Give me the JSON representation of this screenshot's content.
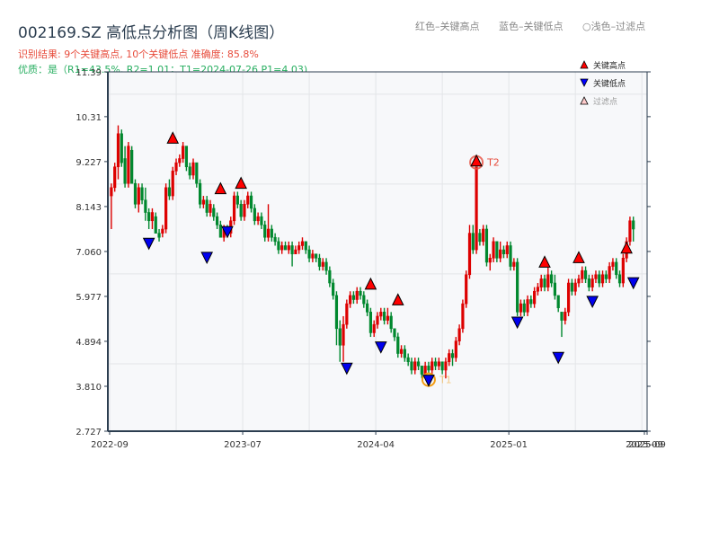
{
  "header": {
    "title": "002169.SZ 高低点分析图（周K线图）",
    "result_line": "识别结果: 9个关键高点, 10个关键低点   准确度: 85.8%",
    "quality_line": "优质：是（R1=43.5%, R2=1.01；T1=2024-07-26 P1=4.03)",
    "color_legend": [
      "红色–关键高点",
      "蓝色–关键低点",
      "○浅色–过滤点"
    ]
  },
  "legend": {
    "items": [
      {
        "label": "关键高点",
        "marker": "triangle-up",
        "color": "#ff0000"
      },
      {
        "label": "关键低点",
        "marker": "triangle-down",
        "color": "#0000ff"
      },
      {
        "label": "过滤点",
        "marker": "triangle-up-outline",
        "color": "#ffcccc"
      }
    ]
  },
  "colors": {
    "up": "#dd0000",
    "down": "#00882e",
    "high_marker": "#ff0000",
    "low_marker": "#0000ee",
    "t1_ring": "#f39c12",
    "t2_ring": "#e74c3c",
    "plot_bg": "#f7f8fa",
    "grid": "#e3e5e8",
    "axis": "#2c3e50"
  },
  "chart_data": {
    "type": "candlestick",
    "title": "002169.SZ 高低点分析图（周K线图）",
    "xlabel": "",
    "ylabel": "",
    "ylim": [
      2.727,
      11.39
    ],
    "yticks": [
      2.727,
      3.81,
      4.894,
      5.977,
      7.06,
      8.143,
      9.227,
      10.31,
      11.39
    ],
    "ytick_labels": [
      "2.727",
      "3.810",
      "4.894",
      "5.977",
      "7.060",
      "8.143",
      "9.227",
      "10.31",
      "11.39"
    ],
    "xticks": [
      {
        "label": "2022-09",
        "week": 0
      },
      {
        "label": "2023-07",
        "week": 39
      },
      {
        "label": "2024-04",
        "week": 78
      },
      {
        "label": "2025-01",
        "week": 117
      },
      {
        "label": "2025-09",
        "week": 156
      },
      {
        "label": "2025-09",
        "week": 157
      }
    ],
    "grid": true,
    "candles": [
      [
        8.4,
        8.6,
        7.6,
        8.7
      ],
      [
        8.6,
        9.1,
        8.5,
        9.2
      ],
      [
        9.1,
        9.9,
        8.8,
        10.1
      ],
      [
        9.9,
        9.2,
        9.1,
        10.0
      ],
      [
        9.3,
        8.7,
        8.6,
        9.6
      ],
      [
        8.7,
        9.6,
        8.6,
        9.7
      ],
      [
        9.5,
        8.7,
        8.7,
        9.6
      ],
      [
        8.7,
        8.2,
        8.1,
        8.8
      ],
      [
        8.2,
        8.6,
        8.0,
        8.7
      ],
      [
        8.6,
        8.3,
        8.2,
        8.7
      ],
      [
        8.3,
        8.0,
        7.8,
        8.6
      ],
      [
        8.0,
        7.8,
        7.6,
        8.1
      ],
      [
        7.8,
        8.0,
        7.6,
        8.1
      ],
      [
        7.9,
        7.5,
        7.5,
        8.0
      ],
      [
        7.5,
        7.4,
        7.3,
        7.6
      ],
      [
        7.5,
        7.6,
        7.4,
        7.7
      ],
      [
        7.6,
        8.6,
        7.5,
        8.7
      ],
      [
        8.6,
        8.4,
        8.3,
        8.8
      ],
      [
        8.4,
        9.0,
        8.3,
        9.1
      ],
      [
        9.0,
        9.2,
        8.9,
        9.3
      ],
      [
        9.2,
        9.3,
        9.1,
        9.4
      ],
      [
        9.3,
        9.6,
        9.2,
        9.7
      ],
      [
        9.6,
        9.1,
        9.0,
        9.6
      ],
      [
        9.1,
        8.9,
        8.8,
        9.2
      ],
      [
        8.9,
        9.2,
        8.8,
        9.3
      ],
      [
        9.2,
        8.7,
        8.6,
        9.2
      ],
      [
        8.7,
        8.2,
        8.1,
        8.8
      ],
      [
        8.2,
        8.3,
        8.1,
        8.4
      ],
      [
        8.3,
        8.0,
        7.9,
        8.4
      ],
      [
        8.0,
        8.2,
        7.9,
        8.3
      ],
      [
        8.1,
        7.9,
        7.8,
        8.2
      ],
      [
        7.9,
        7.7,
        7.6,
        8.0
      ],
      [
        7.7,
        7.4,
        7.4,
        7.8
      ],
      [
        7.4,
        7.6,
        7.3,
        7.7
      ],
      [
        7.6,
        7.5,
        7.5,
        7.7
      ],
      [
        7.5,
        7.8,
        7.4,
        7.9
      ],
      [
        7.8,
        8.4,
        7.7,
        8.5
      ],
      [
        8.4,
        8.2,
        8.1,
        8.5
      ],
      [
        8.2,
        7.9,
        7.8,
        8.3
      ],
      [
        7.9,
        8.2,
        7.8,
        8.3
      ],
      [
        8.2,
        8.4,
        8.1,
        8.5
      ],
      [
        8.4,
        8.1,
        8.0,
        8.5
      ],
      [
        8.1,
        7.8,
        7.7,
        8.2
      ],
      [
        7.8,
        7.9,
        7.7,
        8.0
      ],
      [
        7.9,
        7.7,
        7.6,
        8.0
      ],
      [
        7.7,
        7.4,
        7.3,
        7.8
      ],
      [
        7.4,
        7.6,
        7.3,
        8.2
      ],
      [
        7.6,
        7.4,
        7.3,
        7.7
      ],
      [
        7.4,
        7.3,
        7.2,
        7.5
      ],
      [
        7.3,
        7.1,
        7.0,
        7.4
      ],
      [
        7.1,
        7.2,
        7.0,
        7.3
      ],
      [
        7.2,
        7.1,
        7.1,
        7.3
      ],
      [
        7.1,
        7.2,
        7.0,
        7.3
      ],
      [
        7.2,
        7.0,
        6.7,
        7.3
      ],
      [
        7.0,
        7.1,
        7.0,
        7.2
      ],
      [
        7.1,
        7.2,
        7.0,
        7.3
      ],
      [
        7.2,
        7.3,
        7.1,
        7.4
      ],
      [
        7.3,
        7.1,
        7.0,
        7.3
      ],
      [
        7.1,
        6.9,
        6.8,
        7.2
      ],
      [
        6.9,
        7.0,
        6.8,
        7.1
      ],
      [
        7.0,
        6.9,
        6.8,
        7.0
      ],
      [
        6.9,
        6.7,
        6.6,
        7.0
      ],
      [
        6.7,
        6.8,
        6.6,
        6.9
      ],
      [
        6.8,
        6.6,
        6.5,
        6.9
      ],
      [
        6.6,
        6.3,
        6.2,
        6.7
      ],
      [
        6.3,
        6.0,
        5.9,
        6.4
      ],
      [
        6.0,
        5.2,
        4.8,
        6.1
      ],
      [
        5.2,
        4.8,
        4.4,
        5.4
      ],
      [
        4.8,
        5.3,
        4.4,
        5.5
      ],
      [
        5.3,
        5.8,
        5.2,
        5.9
      ],
      [
        5.8,
        6.0,
        5.7,
        6.1
      ],
      [
        6.0,
        5.9,
        5.8,
        6.1
      ],
      [
        5.9,
        6.1,
        5.8,
        6.2
      ],
      [
        6.1,
        6.0,
        5.9,
        6.2
      ],
      [
        6.0,
        5.8,
        5.7,
        6.1
      ],
      [
        5.8,
        5.6,
        5.5,
        5.9
      ],
      [
        5.6,
        5.1,
        5.0,
        5.7
      ],
      [
        5.1,
        5.3,
        5.0,
        5.4
      ],
      [
        5.3,
        5.5,
        5.2,
        5.6
      ],
      [
        5.5,
        5.6,
        5.4,
        5.7
      ],
      [
        5.6,
        5.4,
        5.3,
        5.7
      ],
      [
        5.4,
        5.5,
        5.3,
        5.7
      ],
      [
        5.5,
        5.2,
        5.1,
        5.6
      ],
      [
        5.2,
        5.0,
        4.9,
        5.2
      ],
      [
        5.0,
        4.6,
        4.5,
        5.1
      ],
      [
        4.6,
        4.7,
        4.5,
        4.8
      ],
      [
        4.7,
        4.5,
        4.4,
        4.8
      ],
      [
        4.5,
        4.4,
        4.3,
        4.6
      ],
      [
        4.4,
        4.2,
        4.1,
        4.5
      ],
      [
        4.2,
        4.4,
        4.1,
        4.5
      ],
      [
        4.4,
        4.3,
        4.2,
        4.5
      ],
      [
        4.3,
        4.1,
        4.0,
        4.3
      ],
      [
        4.1,
        4.3,
        4.0,
        4.4
      ],
      [
        4.3,
        4.2,
        4.1,
        4.4
      ],
      [
        4.2,
        4.4,
        4.1,
        4.5
      ],
      [
        4.4,
        4.3,
        4.2,
        4.5
      ],
      [
        4.3,
        4.4,
        4.2,
        4.5
      ],
      [
        4.4,
        4.2,
        4.1,
        4.4
      ],
      [
        4.2,
        4.4,
        4.0,
        4.5
      ],
      [
        4.4,
        4.6,
        4.3,
        4.7
      ],
      [
        4.6,
        4.5,
        4.3,
        4.7
      ],
      [
        4.5,
        4.9,
        4.4,
        5.0
      ],
      [
        4.9,
        5.2,
        4.8,
        5.3
      ],
      [
        5.2,
        5.8,
        5.1,
        5.9
      ],
      [
        5.8,
        6.5,
        5.7,
        6.6
      ],
      [
        6.5,
        7.5,
        6.4,
        7.7
      ],
      [
        7.5,
        7.1,
        7.0,
        7.7
      ],
      [
        7.1,
        9.1,
        7.0,
        9.1
      ],
      [
        7.5,
        7.3,
        7.2,
        7.6
      ],
      [
        7.3,
        7.6,
        7.2,
        7.7
      ],
      [
        7.6,
        6.8,
        6.7,
        7.7
      ],
      [
        6.8,
        6.9,
        6.6,
        7.0
      ],
      [
        6.9,
        7.3,
        6.8,
        7.4
      ],
      [
        7.3,
        6.9,
        6.8,
        7.3
      ],
      [
        6.9,
        7.1,
        6.8,
        7.3
      ],
      [
        7.1,
        7.0,
        6.9,
        7.2
      ],
      [
        7.0,
        7.2,
        6.9,
        7.3
      ],
      [
        7.2,
        6.7,
        6.6,
        7.3
      ],
      [
        6.7,
        6.8,
        6.6,
        6.9
      ],
      [
        6.8,
        5.6,
        5.5,
        6.9
      ],
      [
        5.6,
        5.8,
        5.5,
        5.9
      ],
      [
        5.8,
        5.6,
        5.5,
        5.9
      ],
      [
        5.6,
        5.9,
        5.5,
        6.0
      ],
      [
        5.9,
        5.8,
        5.7,
        6.0
      ],
      [
        5.8,
        6.1,
        5.7,
        6.2
      ],
      [
        6.1,
        6.2,
        6.0,
        6.3
      ],
      [
        6.2,
        6.4,
        6.1,
        6.5
      ],
      [
        6.4,
        6.2,
        6.1,
        6.5
      ],
      [
        6.2,
        6.5,
        6.1,
        6.7
      ],
      [
        6.5,
        6.3,
        6.2,
        6.6
      ],
      [
        6.3,
        6.0,
        5.9,
        6.5
      ],
      [
        6.0,
        5.7,
        5.6,
        6.0
      ],
      [
        5.6,
        5.4,
        5.0,
        5.6
      ],
      [
        5.4,
        5.6,
        5.3,
        5.7
      ],
      [
        5.6,
        6.3,
        5.5,
        6.4
      ],
      [
        6.3,
        6.1,
        6.0,
        6.4
      ],
      [
        6.1,
        6.3,
        6.0,
        6.4
      ],
      [
        6.3,
        6.4,
        6.2,
        6.5
      ],
      [
        6.4,
        6.6,
        6.3,
        6.7
      ],
      [
        6.6,
        6.4,
        6.3,
        6.7
      ],
      [
        6.4,
        6.2,
        6.1,
        6.5
      ],
      [
        6.2,
        6.4,
        6.1,
        6.5
      ],
      [
        6.4,
        6.5,
        6.3,
        6.6
      ],
      [
        6.5,
        6.3,
        6.2,
        6.6
      ],
      [
        6.3,
        6.5,
        6.2,
        6.6
      ],
      [
        6.5,
        6.4,
        6.3,
        6.6
      ],
      [
        6.4,
        6.7,
        6.3,
        6.8
      ],
      [
        6.7,
        6.8,
        6.6,
        6.9
      ],
      [
        6.8,
        6.5,
        6.4,
        6.9
      ],
      [
        6.5,
        6.3,
        6.2,
        6.6
      ],
      [
        6.3,
        6.9,
        6.2,
        7.0
      ],
      [
        6.9,
        7.3,
        6.8,
        7.4
      ],
      [
        7.3,
        7.8,
        7.2,
        7.9
      ],
      [
        7.8,
        7.6,
        7.3,
        7.9
      ]
    ],
    "key_highs": [
      {
        "week": 18,
        "price": 9.65
      },
      {
        "week": 32,
        "price": 8.43
      },
      {
        "week": 38,
        "price": 8.56
      },
      {
        "week": 76,
        "price": 6.13
      },
      {
        "week": 84,
        "price": 5.75
      },
      {
        "week": 107,
        "price": 9.1,
        "label": "T2"
      },
      {
        "week": 127,
        "price": 6.66
      },
      {
        "week": 137,
        "price": 6.77
      },
      {
        "week": 151,
        "price": 7.0
      }
    ],
    "key_lows": [
      {
        "week": 11,
        "price": 7.4
      },
      {
        "week": 28,
        "price": 7.06
      },
      {
        "week": 34,
        "price": 7.68
      },
      {
        "week": 69,
        "price": 4.39
      },
      {
        "week": 79,
        "price": 4.9
      },
      {
        "week": 93,
        "price": 4.1,
        "label": "T1"
      },
      {
        "week": 119,
        "price": 5.5
      },
      {
        "week": 131,
        "price": 4.65
      },
      {
        "week": 141,
        "price": 6.0
      },
      {
        "week": 153,
        "price": 6.45
      }
    ],
    "annotations": [
      {
        "text": "T1",
        "date": "2024-07-26",
        "price": 4.03
      },
      {
        "text": "T2",
        "price": 9.1
      }
    ],
    "legend_position": "upper right"
  }
}
